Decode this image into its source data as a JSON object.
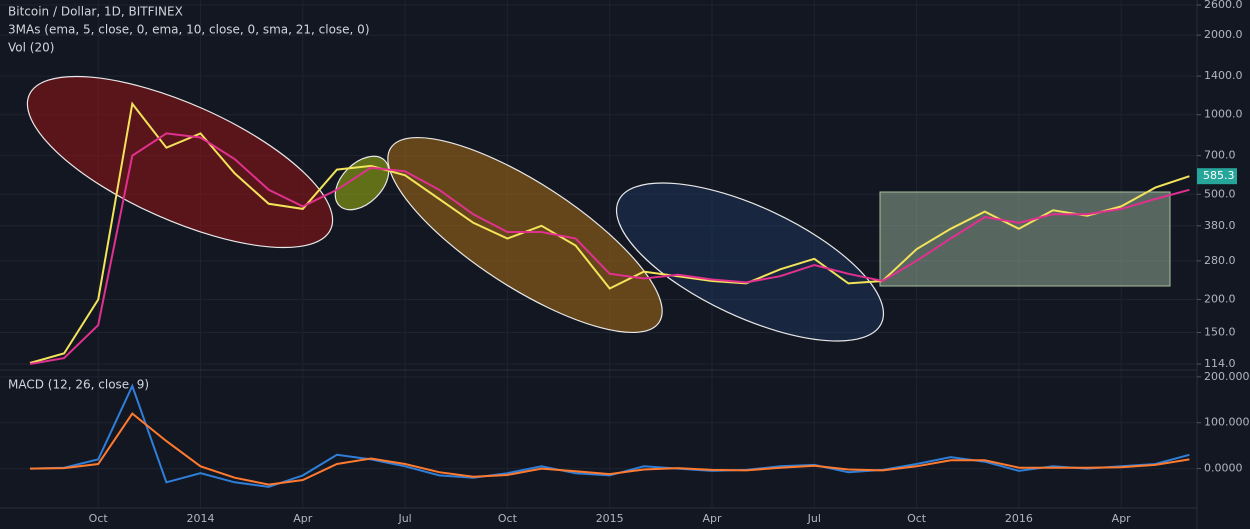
{
  "chart_data": [
    {
      "type": "line",
      "title": "Bitcoin / Dollar, 1D, BITFINEX",
      "subtitle": "3MAs (ema, 5, close, 0, ema, 10, close, 0, sma, 21, close, 0)",
      "volume_label": "Vol (20)",
      "log_scale": true,
      "grid": true,
      "x": [
        "2013-08",
        "2013-09",
        "2013-10",
        "2013-11",
        "2013-12",
        "2014-01",
        "2014-02",
        "2014-03",
        "2014-04",
        "2014-05",
        "2014-06",
        "2014-07",
        "2014-08",
        "2014-09",
        "2014-10",
        "2014-11",
        "2014-12",
        "2015-01",
        "2015-02",
        "2015-03",
        "2015-04",
        "2015-05",
        "2015-06",
        "2015-07",
        "2015-08",
        "2015-09",
        "2015-10",
        "2015-11",
        "2015-12",
        "2016-01",
        "2016-02",
        "2016-03",
        "2016-04",
        "2016-05",
        "2016-06"
      ],
      "series": [
        {
          "color": "#f2e35b",
          "values": [
            115,
            125,
            200,
            1100,
            750,
            850,
            600,
            460,
            440,
            620,
            640,
            590,
            480,
            390,
            340,
            380,
            320,
            220,
            255,
            245,
            235,
            230,
            260,
            285,
            230,
            235,
            310,
            370,
            430,
            370,
            435,
            415,
            450,
            530,
            585.3
          ]
        },
        {
          "color": "#e0318f",
          "values": [
            114,
            120,
            160,
            700,
            850,
            820,
            680,
            520,
            450,
            520,
            630,
            610,
            520,
            420,
            360,
            360,
            340,
            250,
            240,
            248,
            238,
            232,
            245,
            270,
            250,
            235,
            280,
            340,
            410,
            390,
            420,
            420,
            440,
            480,
            520
          ]
        }
      ],
      "ylim": [
        114,
        2600
      ],
      "yticks": [
        {
          "value": 114,
          "label": "114.0"
        },
        {
          "value": 150,
          "label": "150.0"
        },
        {
          "value": 200,
          "label": "200.0"
        },
        {
          "value": 280,
          "label": "280.0"
        },
        {
          "value": 380,
          "label": "380.0"
        },
        {
          "value": 500,
          "label": "500.0"
        },
        {
          "value": 700,
          "label": "700.0"
        },
        {
          "value": 1000,
          "label": "1000.0"
        },
        {
          "value": 1400,
          "label": "1400.0"
        },
        {
          "value": 2000,
          "label": "2000.0"
        },
        {
          "value": 2600,
          "label": "2600.0"
        }
      ],
      "xticks": [
        {
          "value": "2013-10",
          "label": "Oct"
        },
        {
          "value": "2014-01",
          "label": "2014"
        },
        {
          "value": "2014-04",
          "label": "Apr"
        },
        {
          "value": "2014-07",
          "label": "Jul"
        },
        {
          "value": "2014-10",
          "label": "Oct"
        },
        {
          "value": "2015-01",
          "label": "2015"
        },
        {
          "value": "2015-04",
          "label": "Apr"
        },
        {
          "value": "2015-07",
          "label": "Jul"
        },
        {
          "value": "2015-10",
          "label": "Oct"
        },
        {
          "value": "2016-01",
          "label": "2016"
        },
        {
          "value": "2016-04",
          "label": "Apr"
        }
      ]
    },
    {
      "type": "line",
      "title": "MACD (12, 26, close, 9)",
      "grid": true,
      "series": [
        {
          "color": "#2f7fd8",
          "values": [
            0,
            2,
            20,
            180,
            -30,
            -10,
            -30,
            -40,
            -15,
            30,
            20,
            5,
            -15,
            -20,
            -10,
            5,
            -10,
            -15,
            5,
            0,
            -5,
            -3,
            5,
            8,
            -8,
            -3,
            10,
            25,
            15,
            -5,
            5,
            0,
            5,
            10,
            30
          ]
        },
        {
          "color": "#ff7a2f",
          "values": [
            0,
            1,
            10,
            120,
            60,
            5,
            -20,
            -35,
            -25,
            10,
            22,
            10,
            -8,
            -18,
            -14,
            0,
            -6,
            -12,
            -2,
            1,
            -3,
            -4,
            2,
            6,
            -2,
            -4,
            5,
            18,
            18,
            2,
            2,
            2,
            3,
            8,
            20
          ]
        }
      ],
      "ylim": [
        -86,
        215
      ],
      "yticks": [
        {
          "value": 0,
          "label": "0.0000"
        },
        {
          "value": 100,
          "label": "100.0000"
        },
        {
          "value": 200,
          "label": "200.0000"
        }
      ]
    }
  ]
}
